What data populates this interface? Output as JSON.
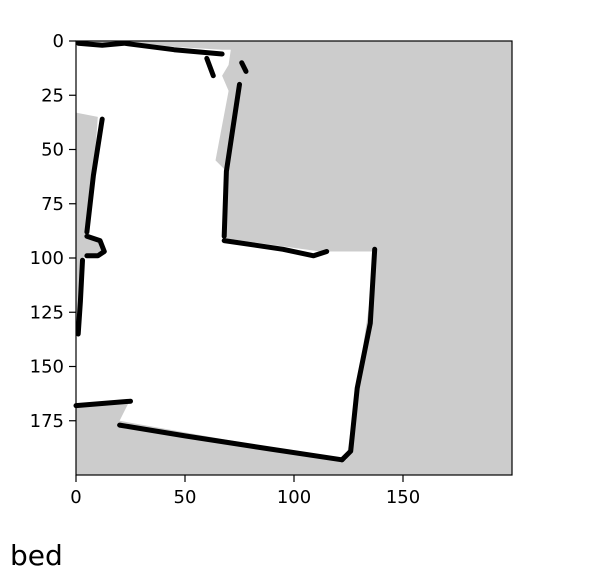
{
  "caption": "bed",
  "colors": {
    "background": "#ffffff",
    "unknown": "#cccccc",
    "free": "#ffffff",
    "occupied": "#000000",
    "axis": "#000000",
    "text": "#000000"
  },
  "chart_data": {
    "type": "heatmap",
    "title": "",
    "xlabel": "",
    "ylabel": "",
    "xlim": [
      0,
      200
    ],
    "ylim": [
      200,
      0
    ],
    "y_inverted": true,
    "grid": false,
    "legend": "none",
    "x_ticks": [
      0,
      50,
      100,
      150
    ],
    "y_ticks": [
      0,
      25,
      50,
      75,
      100,
      125,
      150,
      175
    ],
    "x_tick_labels": [
      "0",
      "50",
      "100",
      "150"
    ],
    "y_tick_labels": [
      "0",
      "25",
      "50",
      "75",
      "100",
      "125",
      "150",
      "175"
    ],
    "categories": [
      "unknown",
      "free",
      "occupied"
    ],
    "free_region": [
      [
        0,
        0
      ],
      [
        67,
        4
      ],
      [
        71,
        4
      ],
      [
        70,
        11
      ],
      [
        67,
        16
      ],
      [
        70,
        23
      ],
      [
        64,
        55
      ],
      [
        69,
        60
      ],
      [
        69,
        91
      ],
      [
        112,
        97
      ],
      [
        138,
        97
      ],
      [
        134,
        125
      ],
      [
        124,
        193
      ],
      [
        110,
        191
      ],
      [
        20,
        175
      ],
      [
        25,
        165
      ],
      [
        0,
        167
      ],
      [
        0,
        135
      ],
      [
        3,
        100
      ],
      [
        12,
        97
      ],
      [
        10,
        91
      ],
      [
        6,
        90
      ],
      [
        10,
        35
      ],
      [
        0,
        33
      ]
    ],
    "walls": [
      [
        [
          1,
          1
        ],
        [
          12,
          2
        ],
        [
          22,
          1
        ],
        [
          45,
          4
        ],
        [
          67,
          6
        ]
      ],
      [
        [
          60,
          8
        ],
        [
          63,
          16
        ]
      ],
      [
        [
          76,
          10
        ],
        [
          78,
          14
        ]
      ],
      [
        [
          12,
          36
        ],
        [
          8,
          62
        ],
        [
          5,
          88
        ]
      ],
      [
        [
          5,
          90
        ],
        [
          11,
          92
        ],
        [
          13,
          97
        ],
        [
          10,
          99
        ],
        [
          5,
          99
        ]
      ],
      [
        [
          3,
          101
        ],
        [
          2,
          120
        ],
        [
          1,
          135
        ]
      ],
      [
        [
          75,
          20
        ],
        [
          69,
          60
        ],
        [
          68,
          90
        ]
      ],
      [
        [
          68,
          92
        ],
        [
          95,
          96
        ],
        [
          109,
          99
        ],
        [
          115,
          97
        ]
      ],
      [
        [
          137,
          96
        ],
        [
          135,
          130
        ],
        [
          129,
          160
        ],
        [
          126,
          189
        ],
        [
          122,
          193
        ]
      ],
      [
        [
          0,
          168
        ],
        [
          25,
          166
        ]
      ],
      [
        [
          20,
          177
        ],
        [
          50,
          182
        ],
        [
          89,
          188
        ],
        [
          122,
          193
        ]
      ]
    ]
  }
}
